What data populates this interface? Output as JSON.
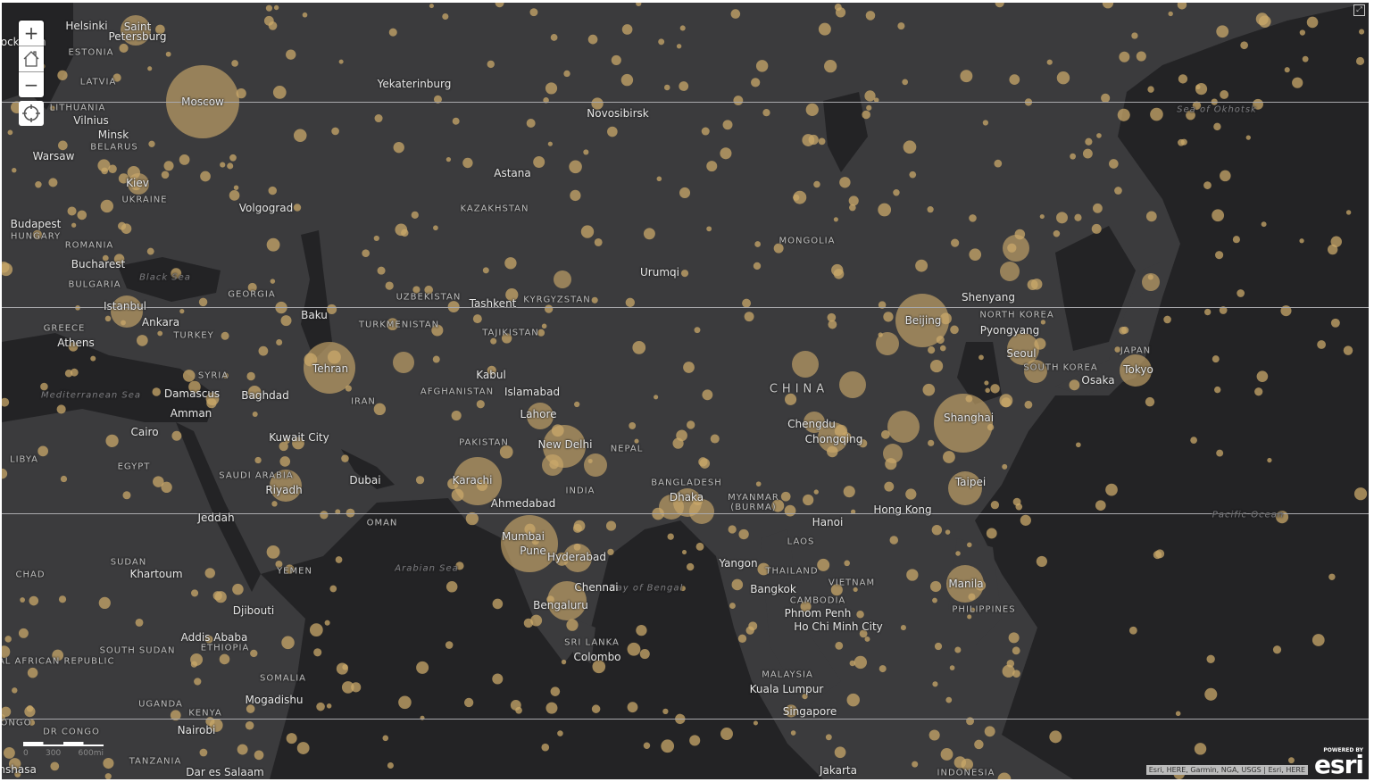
{
  "map": {
    "colors": {
      "land": "#3b3b3d",
      "water": "#232325",
      "symbol": "#c9a86a",
      "label": "#e6e6e6"
    },
    "labels": [
      {
        "text": "Helsinki",
        "kind": "city"
      },
      {
        "text": "Saint Petersburg",
        "kind": "city"
      },
      {
        "text": "Stockholm",
        "kind": "city"
      },
      {
        "text": "ESTONIA",
        "kind": "country"
      },
      {
        "text": "LATVIA",
        "kind": "country"
      },
      {
        "text": "LITHUANIA",
        "kind": "country"
      },
      {
        "text": "Vilnius",
        "kind": "city"
      },
      {
        "text": "Minsk",
        "kind": "city"
      },
      {
        "text": "BELARUS",
        "kind": "country"
      },
      {
        "text": "Moscow",
        "kind": "city"
      },
      {
        "text": "Warsaw",
        "kind": "city"
      },
      {
        "text": "Kiev",
        "kind": "city"
      },
      {
        "text": "UKRAINE",
        "kind": "country"
      },
      {
        "text": "Volgograd",
        "kind": "city"
      },
      {
        "text": "Budapest",
        "kind": "city"
      },
      {
        "text": "HUNGARY",
        "kind": "country"
      },
      {
        "text": "ROMANIA",
        "kind": "country"
      },
      {
        "text": "Bucharest",
        "kind": "city"
      },
      {
        "text": "BULGARIA",
        "kind": "country"
      },
      {
        "text": "Black Sea",
        "kind": "water"
      },
      {
        "text": "GEORGIA",
        "kind": "country"
      },
      {
        "text": "Istanbul",
        "kind": "city"
      },
      {
        "text": "Ankara",
        "kind": "city"
      },
      {
        "text": "TURKEY",
        "kind": "country"
      },
      {
        "text": "GREECE",
        "kind": "country"
      },
      {
        "text": "Athens",
        "kind": "city"
      },
      {
        "text": "Baku",
        "kind": "city"
      },
      {
        "text": "Yekaterinburg",
        "kind": "city"
      },
      {
        "text": "Novosibirsk",
        "kind": "city"
      },
      {
        "text": "Astana",
        "kind": "city"
      },
      {
        "text": "KAZAKHSTAN",
        "kind": "country"
      },
      {
        "text": "UZBEKISTAN",
        "kind": "country"
      },
      {
        "text": "Tashkent",
        "kind": "city"
      },
      {
        "text": "KYRGYZSTAN",
        "kind": "country"
      },
      {
        "text": "TURKMENISTAN",
        "kind": "country"
      },
      {
        "text": "TAJIKISTAN",
        "kind": "country"
      },
      {
        "text": "Tehran",
        "kind": "city"
      },
      {
        "text": "SYRIA",
        "kind": "country"
      },
      {
        "text": "Damascus",
        "kind": "city"
      },
      {
        "text": "Baghdad",
        "kind": "city"
      },
      {
        "text": "IRAN",
        "kind": "country"
      },
      {
        "text": "Amman",
        "kind": "city"
      },
      {
        "text": "Mediterranean Sea",
        "kind": "water"
      },
      {
        "text": "Cairo",
        "kind": "city"
      },
      {
        "text": "Kuwait City",
        "kind": "city"
      },
      {
        "text": "LIBYA",
        "kind": "country"
      },
      {
        "text": "EGYPT",
        "kind": "country"
      },
      {
        "text": "SAUDI ARABIA",
        "kind": "country"
      },
      {
        "text": "Riyadh",
        "kind": "city"
      },
      {
        "text": "Dubai",
        "kind": "city"
      },
      {
        "text": "Jeddah",
        "kind": "city"
      },
      {
        "text": "Kabul",
        "kind": "city"
      },
      {
        "text": "AFGHANISTAN",
        "kind": "country"
      },
      {
        "text": "Islamabad",
        "kind": "city"
      },
      {
        "text": "Lahore",
        "kind": "city"
      },
      {
        "text": "PAKISTAN",
        "kind": "country"
      },
      {
        "text": "New Delhi",
        "kind": "city"
      },
      {
        "text": "NEPAL",
        "kind": "country"
      },
      {
        "text": "Karachi",
        "kind": "city"
      },
      {
        "text": "Ahmedabad",
        "kind": "city"
      },
      {
        "text": "INDIA",
        "kind": "country"
      },
      {
        "text": "OMAN",
        "kind": "country"
      },
      {
        "text": "Mumbai",
        "kind": "city"
      },
      {
        "text": "Pune",
        "kind": "city"
      },
      {
        "text": "Hyderabad",
        "kind": "city"
      },
      {
        "text": "Arabian Sea",
        "kind": "water"
      },
      {
        "text": "Bay of Bengal",
        "kind": "water"
      },
      {
        "text": "Bengaluru",
        "kind": "city"
      },
      {
        "text": "Chennai",
        "kind": "city"
      },
      {
        "text": "SRI LANKA",
        "kind": "country"
      },
      {
        "text": "Colombo",
        "kind": "city"
      },
      {
        "text": "BANGLADESH",
        "kind": "country"
      },
      {
        "text": "Dhaka",
        "kind": "city"
      },
      {
        "text": "MYANMAR (BURMA)",
        "kind": "country"
      },
      {
        "text": "Urumqi",
        "kind": "city"
      },
      {
        "text": "MONGOLIA",
        "kind": "country"
      },
      {
        "text": "CHINA",
        "kind": "big"
      },
      {
        "text": "Beijing",
        "kind": "city"
      },
      {
        "text": "Shenyang",
        "kind": "city"
      },
      {
        "text": "NORTH KOREA",
        "kind": "country"
      },
      {
        "text": "Pyongyang",
        "kind": "city"
      },
      {
        "text": "Seoul",
        "kind": "city"
      },
      {
        "text": "SOUTH KOREA",
        "kind": "country"
      },
      {
        "text": "JAPAN",
        "kind": "country"
      },
      {
        "text": "Tokyo",
        "kind": "city"
      },
      {
        "text": "Osaka",
        "kind": "city"
      },
      {
        "text": "Chengdu",
        "kind": "city"
      },
      {
        "text": "Chongqing",
        "kind": "city"
      },
      {
        "text": "Shanghai",
        "kind": "city"
      },
      {
        "text": "Taipei",
        "kind": "city"
      },
      {
        "text": "Hong Kong",
        "kind": "city"
      },
      {
        "text": "Hanoi",
        "kind": "city"
      },
      {
        "text": "LAOS",
        "kind": "country"
      },
      {
        "text": "Yangon",
        "kind": "city"
      },
      {
        "text": "THAILAND",
        "kind": "country"
      },
      {
        "text": "VIETNAM",
        "kind": "country"
      },
      {
        "text": "Bangkok",
        "kind": "city"
      },
      {
        "text": "CAMBODIA",
        "kind": "country"
      },
      {
        "text": "Phnom Penh",
        "kind": "city"
      },
      {
        "text": "Ho Chi Minh City",
        "kind": "city"
      },
      {
        "text": "Manila",
        "kind": "city"
      },
      {
        "text": "PHILIPPINES",
        "kind": "country"
      },
      {
        "text": "Kuala Lumpur",
        "kind": "city"
      },
      {
        "text": "MALAYSIA",
        "kind": "country"
      },
      {
        "text": "Singapore",
        "kind": "city"
      },
      {
        "text": "Jakarta",
        "kind": "city"
      },
      {
        "text": "INDONESIA",
        "kind": "country"
      },
      {
        "text": "Pacific Ocean",
        "kind": "water"
      },
      {
        "text": "Sea of Okhotsk",
        "kind": "water"
      },
      {
        "text": "SUDAN",
        "kind": "country"
      },
      {
        "text": "Khartoum",
        "kind": "city"
      },
      {
        "text": "CHAD",
        "kind": "country"
      },
      {
        "text": "YEMEN",
        "kind": "country"
      },
      {
        "text": "Djibouti",
        "kind": "city"
      },
      {
        "text": "Addis Ababa",
        "kind": "city"
      },
      {
        "text": "ETHIOPIA",
        "kind": "country"
      },
      {
        "text": "SOUTH SUDAN",
        "kind": "country"
      },
      {
        "text": "CENTRAL AFRICAN REPUBLIC",
        "kind": "country"
      },
      {
        "text": "SOMALIA",
        "kind": "country"
      },
      {
        "text": "Mogadishu",
        "kind": "city"
      },
      {
        "text": "UGANDA",
        "kind": "country"
      },
      {
        "text": "KENYA",
        "kind": "country"
      },
      {
        "text": "Nairobi",
        "kind": "city"
      },
      {
        "text": "DR CONGO",
        "kind": "country"
      },
      {
        "text": "TANZANIA",
        "kind": "country"
      },
      {
        "text": "CONGO",
        "kind": "country"
      },
      {
        "text": "Kinshasa",
        "kind": "city"
      },
      {
        "text": "Dar es Salaam",
        "kind": "city"
      }
    ]
  },
  "controls": {
    "zoom_in": "+",
    "home_icon": "home-icon",
    "zoom_out": "−",
    "locate_icon": "locate-icon",
    "expand_icon": "expand-icon"
  },
  "scale": {
    "ticks": [
      "0",
      "300",
      "600mi"
    ]
  },
  "attribution": "Esri, HERE, Garmin, NGA, USGS | Esri, HERE",
  "esri": {
    "powered": "POWERED BY",
    "logo": "esri"
  }
}
